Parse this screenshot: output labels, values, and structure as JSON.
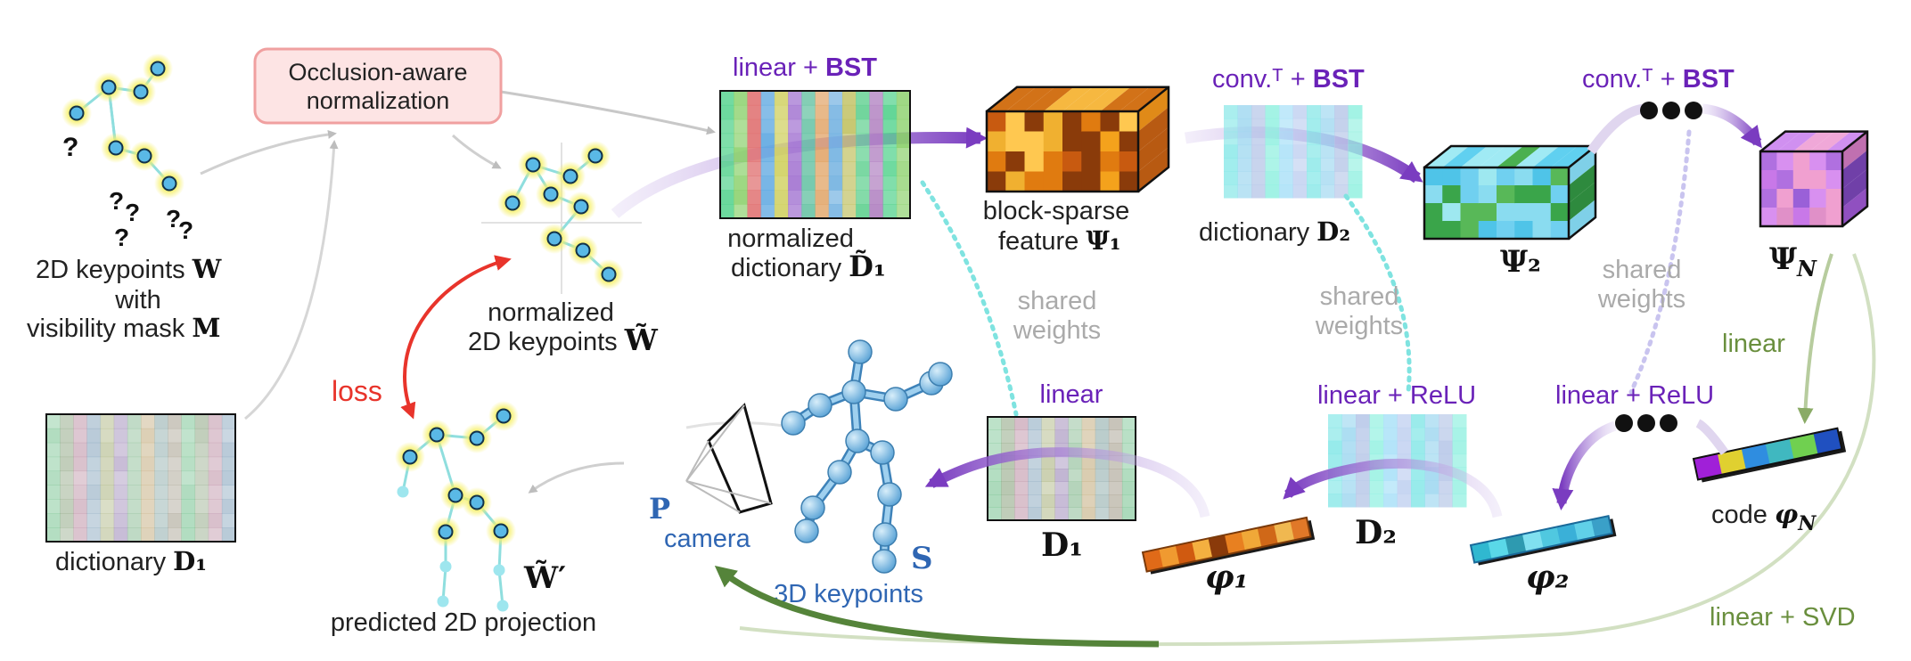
{
  "colors": {
    "purple": "#6a22b8",
    "purple_arrow": "#7a3cc0",
    "gray_text": "#aaaaaa",
    "green": "#6a8f3e",
    "dark_green": "#55843a",
    "blue": "#2f66b3",
    "red": "#e8342b",
    "cyan_dots": "#7fe3e0",
    "keypoint_fill": "#5ab9e6",
    "keypoint_glow": "#f6f06a",
    "norm_box_fill": "#fde4e4",
    "norm_box_border": "#f0a0a0"
  },
  "normalization": {
    "line1": "Occlusion-aware",
    "line2": "normalization"
  },
  "input": {
    "kp_label": "2D keypoints ",
    "kp_symbol": "W",
    "with": "with",
    "mask_label": "visibility mask ",
    "mask_symbol": "M",
    "question_mark": "?"
  },
  "dictionary_d1": {
    "label": "dictionary ",
    "symbol": "D₁"
  },
  "normalized_kp": {
    "line1": "normalized",
    "line2": "2D keypoints ",
    "symbol": "W̃"
  },
  "loss": {
    "label": "loss"
  },
  "predicted": {
    "symbol": "W̃′",
    "label": "predicted 2D projection"
  },
  "camera": {
    "symbol": "P",
    "label": "camera"
  },
  "keypoints3d": {
    "symbol": "S",
    "label": "3D keypoints"
  },
  "top_ops": {
    "op1_plain": "linear + ",
    "bst": "BST",
    "op2_plain": "conv.ᵀ + ",
    "op3_plain": "conv.ᵀ + "
  },
  "norm_dict": {
    "line1": "normalized",
    "line2": "dictionary ",
    "symbol": "D̃₁"
  },
  "block_sparse": {
    "line1": "block-sparse",
    "line2": "feature ",
    "symbol": "Ψ₁"
  },
  "dictionary_d2": {
    "label": "dictionary ",
    "symbol": "D₂"
  },
  "psi2": {
    "symbol": "Ψ₂"
  },
  "psiN": {
    "symbol": "Ψ_N",
    "base": "Ψ",
    "sub": "N"
  },
  "shared_weights": {
    "line1": "shared",
    "line2": "weights"
  },
  "bottom_ops": {
    "linear": "linear",
    "linear_relu": "linear + ReLU",
    "linear_svd": "linear + SVD"
  },
  "codes": {
    "d1": "D₁",
    "d2": "D₂",
    "phi1": "φ₁",
    "phi2": "φ₂",
    "codeN_label": "code ",
    "phiN_base": "φ",
    "phiN_sub": "N"
  }
}
